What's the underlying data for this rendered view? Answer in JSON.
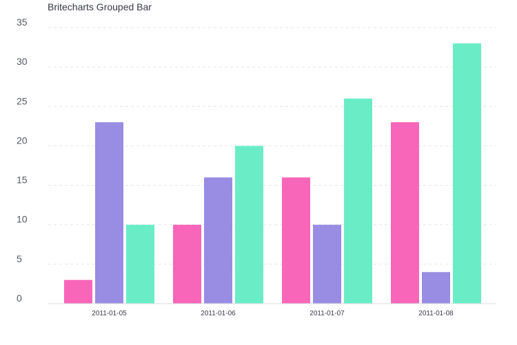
{
  "chart_data": {
    "type": "bar",
    "title": "Britecharts Grouped Bar",
    "xlabel": "",
    "ylabel": "",
    "categories": [
      "2011-01-05",
      "2011-01-06",
      "2011-01-07",
      "2011-01-08"
    ],
    "series": [
      {
        "values": [
          3,
          10,
          16,
          23
        ],
        "color": "#f866b9"
      },
      {
        "values": [
          23,
          16,
          10,
          4
        ],
        "color": "#998ce3"
      },
      {
        "values": [
          10,
          20,
          26,
          33
        ],
        "color": "#6aedc7"
      }
    ],
    "ylim": [
      0,
      35
    ],
    "yticks": [
      0,
      5,
      10,
      15,
      20,
      25,
      30,
      35
    ],
    "grid": true,
    "legend": "none"
  }
}
